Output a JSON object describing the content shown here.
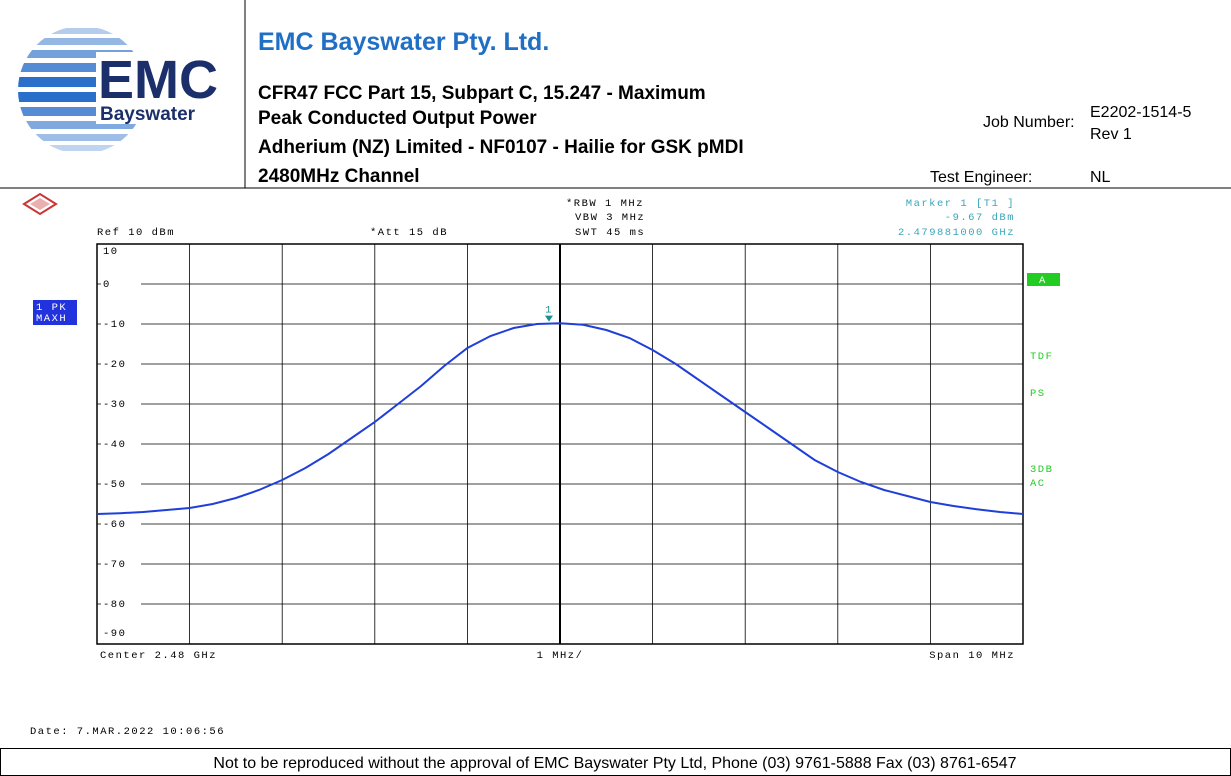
{
  "header": {
    "logo": {
      "big": "EMC",
      "small": "Bayswater"
    },
    "company": "EMC Bayswater Pty. Ltd.",
    "title_lines": [
      "CFR47 FCC Part 15, Subpart C, 15.247 - Maximum",
      "Peak Conducted Output Power",
      "Adherium (NZ) Limited - NF0107 - Hailie for GSK pMDI",
      "2480MHz Channel"
    ],
    "job_number_label": "Job Number:",
    "job_number": "E2202-1514-5",
    "revision": "Rev 1",
    "engineer_label": "Test Engineer:",
    "engineer": "NL"
  },
  "instrument": {
    "ref": "Ref 10 dBm",
    "att": "*Att 15 dB",
    "rbw": "*RBW 1 MHz",
    "vbw": "VBW 3 MHz",
    "swt": "SWT 45 ms",
    "marker_title": "Marker 1 [T1 ]",
    "marker_level": "-9.67 dBm",
    "marker_freq": "2.479881000 GHz",
    "trace": [
      "1 PK",
      "MAXH"
    ],
    "right_flags": [
      "A",
      "TDF",
      "PS",
      "3DB",
      "AC"
    ],
    "center": "Center 2.48 GHz",
    "div": "1 MHz/",
    "span": "Span 10 MHz",
    "date": "Date: 7.MAR.2022 10:06:56"
  },
  "chart_data": {
    "type": "line",
    "ylim": [
      -90,
      10
    ],
    "yticks": [
      10,
      0,
      -10,
      -20,
      -30,
      -40,
      -50,
      -60,
      -70,
      -80,
      -90
    ],
    "xlim": [
      2.475,
      2.485
    ],
    "grid": true,
    "x": [
      2.475,
      2.47525,
      2.4755,
      2.47575,
      2.476,
      2.47625,
      2.4765,
      2.47675,
      2.477,
      2.47725,
      2.4775,
      2.47775,
      2.478,
      2.47825,
      2.4785,
      2.47875,
      2.479,
      2.47925,
      2.4795,
      2.47975,
      2.48,
      2.48025,
      2.4805,
      2.48075,
      2.481,
      2.48125,
      2.4815,
      2.48175,
      2.482,
      2.48225,
      2.4825,
      2.48275,
      2.483,
      2.48325,
      2.4835,
      2.48375,
      2.484,
      2.48425,
      2.4845,
      2.48475,
      2.485
    ],
    "series": [
      {
        "color": "#1f3fd8",
        "values": [
          -57.5,
          -57.3,
          -57,
          -56.5,
          -56,
          -55,
          -53.5,
          -51.5,
          -49,
          -46,
          -42.5,
          -38.5,
          -34.5,
          -30,
          -25.5,
          -20.5,
          -16,
          -13,
          -11,
          -10,
          -9.8,
          -10.2,
          -11.5,
          -13.5,
          -16.5,
          -20,
          -24,
          -28,
          -32,
          -36,
          -40,
          -44,
          -47,
          -49.5,
          -51.5,
          -53,
          -54.5,
          -55.5,
          -56.3,
          -57,
          -57.5
        ]
      }
    ],
    "marker": {
      "label": "1",
      "x": 2.479881,
      "y": -9.67,
      "color": "#1a8f8f"
    }
  },
  "footer": "Not to be reproduced without the approval of EMC Bayswater Pty Ltd, Phone (03) 9761-5888 Fax (03) 8761-6547"
}
